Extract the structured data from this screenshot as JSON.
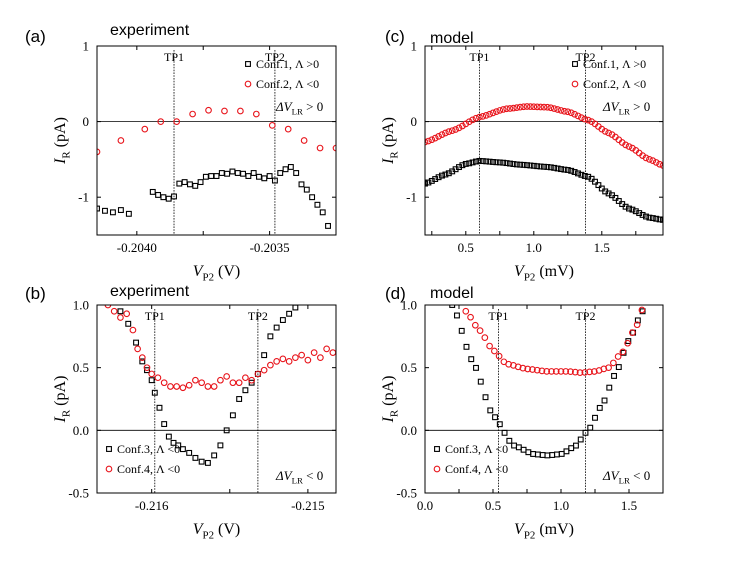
{
  "colors": {
    "black_series": "#000000",
    "red_series": "#e8141b",
    "axis": "#000000"
  },
  "chart_data": [
    {
      "id": "a",
      "type": "scatter",
      "panel_label": "(a)",
      "title": "experiment",
      "xlabel_main": "V",
      "xlabel_sub": "P2",
      "xlabel_unit": "(V)",
      "ylabel_main": "I",
      "ylabel_sub": "R",
      "ylabel_unit": "(pA)",
      "xlim": [
        -0.20415,
        -0.20325
      ],
      "ylim": [
        -1.5,
        1.0
      ],
      "xticks": [
        -0.204,
        -0.20375,
        -0.2035,
        -0.20325
      ],
      "xtick_labels": [
        "-0.2040",
        "",
        "-0.2035",
        ""
      ],
      "yticks": [
        -1,
        0,
        1
      ],
      "ytick_labels": [
        "-1",
        "0",
        "1"
      ],
      "zero_line": true,
      "vlines": [
        {
          "label": "TP1",
          "x": -0.20386
        },
        {
          "label": "TP2",
          "x": -0.20348
        }
      ],
      "legend": [
        {
          "text": "Conf.1, Λ >0",
          "marker": "square",
          "color": "#000000"
        },
        {
          "text": "Conf.2, Λ <0",
          "marker": "circle",
          "color": "#e8141b"
        }
      ],
      "annotation_main": "ΔV",
      "annotation_sub": "LR",
      "annotation_rest": " > 0",
      "series": [
        {
          "name": "Conf.1",
          "marker": "square",
          "color": "#000000",
          "x": [
            -0.20415,
            -0.20412,
            -0.20409,
            -0.20406,
            -0.20403,
            -0.20394,
            -0.20392,
            -0.2039,
            -0.20388,
            -0.20386,
            -0.20384,
            -0.20382,
            -0.2038,
            -0.20378,
            -0.20376,
            -0.20374,
            -0.20372,
            -0.2037,
            -0.20368,
            -0.20366,
            -0.20364,
            -0.20362,
            -0.2036,
            -0.20358,
            -0.20356,
            -0.20354,
            -0.20352,
            -0.2035,
            -0.20348,
            -0.20346,
            -0.20344,
            -0.20342,
            -0.2034,
            -0.20338,
            -0.20336,
            -0.20334,
            -0.20332,
            -0.2033,
            -0.20328
          ],
          "y": [
            -1.15,
            -1.18,
            -1.2,
            -1.17,
            -1.22,
            -0.93,
            -0.97,
            -1.0,
            -1.02,
            -0.99,
            -0.82,
            -0.8,
            -0.83,
            -0.85,
            -0.8,
            -0.73,
            -0.72,
            -0.72,
            -0.68,
            -0.69,
            -0.66,
            -0.68,
            -0.69,
            -0.72,
            -0.68,
            -0.73,
            -0.75,
            -0.72,
            -0.78,
            -0.68,
            -0.63,
            -0.6,
            -0.68,
            -0.83,
            -0.9,
            -1.0,
            -1.1,
            -1.2,
            -1.38
          ]
        },
        {
          "name": "Conf.2",
          "marker": "circle",
          "color": "#e8141b",
          "x": [
            -0.20415,
            -0.20406,
            -0.20397,
            -0.20391,
            -0.20385,
            -0.20379,
            -0.20373,
            -0.20367,
            -0.20361,
            -0.20355,
            -0.20349,
            -0.20343,
            -0.20337,
            -0.20331,
            -0.20325
          ],
          "y": [
            -0.4,
            -0.25,
            -0.1,
            0.0,
            0.0,
            0.1,
            0.15,
            0.14,
            0.14,
            0.1,
            -0.05,
            -0.1,
            -0.25,
            -0.35,
            -0.35
          ]
        }
      ]
    },
    {
      "id": "c",
      "type": "scatter",
      "panel_label": "(c)",
      "title": "model",
      "xlabel_main": "V",
      "xlabel_sub": "P2",
      "xlabel_unit": "(mV)",
      "ylabel_main": "I",
      "ylabel_sub": "R",
      "ylabel_unit": "(pA)",
      "xlim": [
        0.2,
        1.95
      ],
      "ylim": [
        -1.5,
        1.0
      ],
      "xticks": [
        0.25,
        0.5,
        0.75,
        1.0,
        1.25,
        1.5,
        1.75
      ],
      "xtick_labels": [
        "",
        "0.5",
        "",
        "1.0",
        "",
        "1.5",
        ""
      ],
      "yticks": [
        -1,
        0,
        1
      ],
      "ytick_labels": [
        "-1",
        "0",
        "1"
      ],
      "zero_line": true,
      "vlines": [
        {
          "label": "TP1",
          "x": 0.6
        },
        {
          "label": "TP2",
          "x": 1.38
        }
      ],
      "legend": [
        {
          "text": "Conf.1, Λ >0",
          "marker": "square",
          "color": "#000000"
        },
        {
          "text": "Conf.2, Λ <0",
          "marker": "circle",
          "color": "#e8141b"
        }
      ],
      "annotation_main": "ΔV",
      "annotation_sub": "LR",
      "annotation_rest": " > 0",
      "curves": [
        {
          "name": "Conf.1",
          "marker": "square",
          "color": "#000000",
          "step": 0.025,
          "knots_x": [
            0.2,
            0.35,
            0.5,
            0.6,
            0.75,
            0.9,
            1.1,
            1.25,
            1.4,
            1.55,
            1.7,
            1.85,
            1.95
          ],
          "knots_y": [
            -0.82,
            -0.7,
            -0.56,
            -0.52,
            -0.54,
            -0.57,
            -0.6,
            -0.64,
            -0.73,
            -0.95,
            -1.15,
            -1.27,
            -1.3
          ]
        },
        {
          "name": "Conf.2",
          "marker": "circle",
          "color": "#e8141b",
          "step": 0.025,
          "knots_x": [
            0.2,
            0.4,
            0.6,
            0.8,
            0.95,
            1.1,
            1.25,
            1.4,
            1.55,
            1.7,
            1.85,
            1.95
          ],
          "knots_y": [
            -0.27,
            -0.12,
            0.06,
            0.17,
            0.2,
            0.19,
            0.13,
            0.02,
            -0.15,
            -0.33,
            -0.5,
            -0.58
          ]
        }
      ]
    },
    {
      "id": "b",
      "type": "scatter",
      "panel_label": "(b)",
      "title": "experiment",
      "xlabel_main": "V",
      "xlabel_sub": "P2",
      "xlabel_unit": "(V)",
      "ylabel_main": "I",
      "ylabel_sub": "R",
      "ylabel_unit": "(pA)",
      "xlim": [
        -0.21635,
        -0.21482
      ],
      "ylim": [
        -0.5,
        1.0
      ],
      "xticks": [
        -0.216,
        -0.2155,
        -0.215
      ],
      "xtick_labels": [
        "-0.216",
        "",
        "-0.215"
      ],
      "yticks": [
        -0.5,
        0.0,
        0.5,
        1.0
      ],
      "ytick_labels": [
        "-0.5",
        "0.0",
        "0.5",
        "1.0"
      ],
      "zero_line": true,
      "vlines": [
        {
          "label": "TP1",
          "x": -0.21598
        },
        {
          "label": "TP2",
          "x": -0.21532
        }
      ],
      "legend": [
        {
          "text": "Conf.3, Λ <0",
          "marker": "square",
          "color": "#000000"
        },
        {
          "text": "Conf.4, Λ <0",
          "marker": "circle",
          "color": "#e8141b"
        }
      ],
      "annotation_main": "ΔV",
      "annotation_sub": "LR",
      "annotation_rest": " < 0",
      "series": [
        {
          "name": "Conf.3",
          "marker": "square",
          "color": "#000000",
          "x": [
            -0.2162,
            -0.21615,
            -0.2161,
            -0.21606,
            -0.21603,
            -0.216,
            -0.21598,
            -0.21595,
            -0.21592,
            -0.21589,
            -0.21586,
            -0.21583,
            -0.2158,
            -0.21576,
            -0.21572,
            -0.21568,
            -0.21564,
            -0.2156,
            -0.21556,
            -0.21552,
            -0.21548,
            -0.21544,
            -0.2154,
            -0.21536,
            -0.21532,
            -0.21528,
            -0.21524,
            -0.2152,
            -0.21516,
            -0.21512,
            -0.21508
          ],
          "y": [
            0.95,
            0.85,
            0.7,
            0.55,
            0.48,
            0.4,
            0.3,
            0.18,
            0.05,
            -0.05,
            -0.1,
            -0.12,
            -0.15,
            -0.18,
            -0.22,
            -0.25,
            -0.26,
            -0.2,
            -0.12,
            0.0,
            0.12,
            0.25,
            0.32,
            0.38,
            0.45,
            0.6,
            0.75,
            0.82,
            0.88,
            0.93,
            0.98
          ]
        },
        {
          "name": "Conf.4",
          "marker": "circle",
          "color": "#e8141b",
          "x": [
            -0.21628,
            -0.21624,
            -0.2162,
            -0.21616,
            -0.21612,
            -0.21609,
            -0.21606,
            -0.21603,
            -0.216,
            -0.21596,
            -0.21592,
            -0.21588,
            -0.21584,
            -0.2158,
            -0.21576,
            -0.21572,
            -0.21568,
            -0.21564,
            -0.2156,
            -0.21556,
            -0.21552,
            -0.21548,
            -0.21544,
            -0.2154,
            -0.21536,
            -0.21532,
            -0.21528,
            -0.21524,
            -0.2152,
            -0.21516,
            -0.21512,
            -0.21508,
            -0.21504,
            -0.215,
            -0.21496,
            -0.21492,
            -0.21488,
            -0.21484
          ],
          "y": [
            1.0,
            0.95,
            0.9,
            0.93,
            0.8,
            0.65,
            0.58,
            0.5,
            0.45,
            0.42,
            0.38,
            0.35,
            0.35,
            0.34,
            0.36,
            0.4,
            0.38,
            0.35,
            0.35,
            0.4,
            0.43,
            0.38,
            0.38,
            0.42,
            0.4,
            0.45,
            0.48,
            0.52,
            0.55,
            0.57,
            0.55,
            0.58,
            0.6,
            0.56,
            0.62,
            0.58,
            0.65,
            0.62
          ]
        }
      ]
    },
    {
      "id": "d",
      "type": "scatter",
      "panel_label": "(d)",
      "title": "model",
      "xlabel_main": "V",
      "xlabel_sub": "P2",
      "xlabel_unit": "(mV)",
      "ylabel_main": "I",
      "ylabel_sub": "R",
      "ylabel_unit": "(pA)",
      "xlim": [
        0.0,
        1.75
      ],
      "ylim": [
        -0.5,
        1.0
      ],
      "xticks": [
        0.0,
        0.25,
        0.5,
        0.75,
        1.0,
        1.25,
        1.5
      ],
      "xtick_labels": [
        "0.0",
        "",
        "0.5",
        "",
        "1.0",
        "",
        "1.5"
      ],
      "yticks": [
        -0.5,
        0.0,
        0.5,
        1.0
      ],
      "ytick_labels": [
        "-0.5",
        "0.0",
        "0.5",
        "1.0"
      ],
      "zero_line": true,
      "vlines": [
        {
          "label": "TP1",
          "x": 0.54
        },
        {
          "label": "TP2",
          "x": 1.18
        }
      ],
      "legend": [
        {
          "text": "Conf.3, Λ <0",
          "marker": "square",
          "color": "#000000"
        },
        {
          "text": "Conf.4, Λ <0",
          "marker": "circle",
          "color": "#e8141b"
        }
      ],
      "annotation_main": "ΔV",
      "annotation_sub": "LR",
      "annotation_rest": " < 0",
      "curves": [
        {
          "name": "Conf.3",
          "marker": "square",
          "color": "#000000",
          "step": 0.035,
          "knots_x": [
            0.2,
            0.35,
            0.5,
            0.65,
            0.8,
            0.9,
            1.0,
            1.1,
            1.2,
            1.3,
            1.4,
            1.5,
            1.6
          ],
          "knots_y": [
            1.0,
            0.55,
            0.12,
            -0.12,
            -0.19,
            -0.2,
            -0.19,
            -0.13,
            0.0,
            0.2,
            0.45,
            0.72,
            0.95
          ]
        },
        {
          "name": "Conf.4",
          "marker": "circle",
          "color": "#e8141b",
          "step": 0.035,
          "knots_x": [
            0.3,
            0.4,
            0.5,
            0.6,
            0.75,
            0.9,
            1.05,
            1.15,
            1.25,
            1.35,
            1.45,
            1.55,
            1.6
          ],
          "knots_y": [
            0.95,
            0.8,
            0.64,
            0.53,
            0.49,
            0.47,
            0.47,
            0.46,
            0.47,
            0.5,
            0.62,
            0.82,
            0.97
          ]
        }
      ]
    }
  ]
}
